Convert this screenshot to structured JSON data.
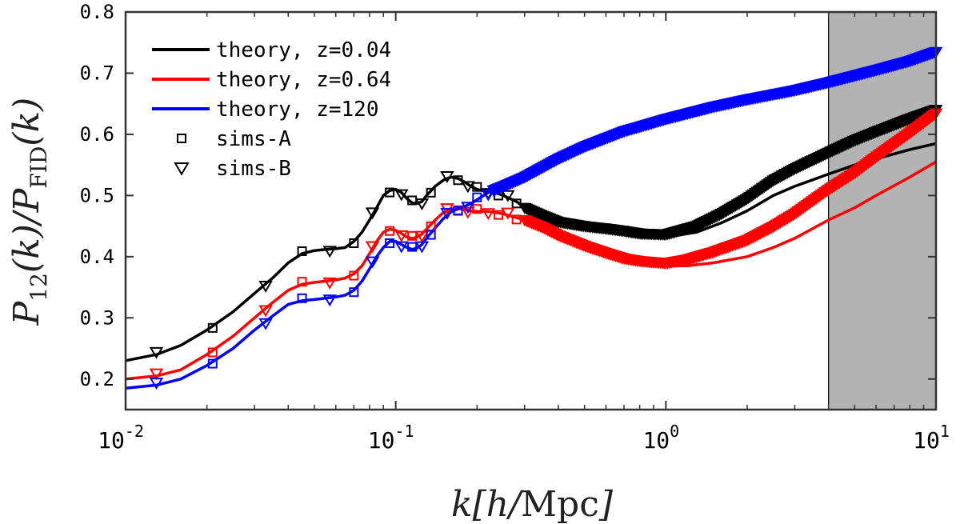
{
  "chart_data": {
    "type": "line",
    "xscale": "log",
    "xlim": [
      0.01,
      10
    ],
    "ylim": [
      0.15,
      0.8
    ],
    "yticks": [
      0.2,
      0.3,
      0.4,
      0.5,
      0.6,
      0.7,
      0.8
    ],
    "ytick_labels": [
      "0.2",
      "0.3",
      "0.4",
      "0.5",
      "0.6",
      "0.7",
      "0.8"
    ],
    "xticks": [
      0.01,
      0.1,
      1,
      10
    ],
    "xtick_labels": [
      {
        "base": "10",
        "exp": "-2"
      },
      {
        "base": "10",
        "exp": "-1"
      },
      {
        "base": "10",
        "exp": "0"
      },
      {
        "base": "10",
        "exp": "1"
      }
    ],
    "xlabel": "k[h/Mpc]",
    "ylabel": "P12(k)/PFID(k)",
    "shaded_region": {
      "xmin": 4,
      "xmax": 10,
      "color": "#b3b3b3"
    },
    "legend_position": "top-left",
    "series": [
      {
        "name": "theory, z=0.04",
        "color": "#000000",
        "x": [
          0.01,
          0.013,
          0.016,
          0.02,
          0.025,
          0.03,
          0.035,
          0.04,
          0.045,
          0.05,
          0.055,
          0.06,
          0.065,
          0.07,
          0.075,
          0.08,
          0.085,
          0.09,
          0.095,
          0.1,
          0.105,
          0.11,
          0.115,
          0.12,
          0.125,
          0.13,
          0.14,
          0.15,
          0.16,
          0.17,
          0.18,
          0.19,
          0.2,
          0.21,
          0.22,
          0.23,
          0.25,
          0.28,
          0.3,
          0.35,
          0.4,
          0.5,
          0.6,
          0.7,
          0.8,
          1.0,
          1.3,
          1.6,
          2.0,
          2.5,
          3.0,
          4.0,
          5.0,
          6.0,
          8.0,
          10.0
        ],
        "y": [
          0.23,
          0.24,
          0.255,
          0.28,
          0.31,
          0.34,
          0.365,
          0.39,
          0.405,
          0.41,
          0.412,
          0.413,
          0.415,
          0.425,
          0.44,
          0.46,
          0.48,
          0.5,
          0.508,
          0.51,
          0.505,
          0.495,
          0.488,
          0.487,
          0.49,
          0.5,
          0.515,
          0.525,
          0.53,
          0.528,
          0.522,
          0.515,
          0.51,
          0.508,
          0.507,
          0.506,
          0.5,
          0.49,
          0.48,
          0.467,
          0.457,
          0.45,
          0.445,
          0.44,
          0.435,
          0.432,
          0.44,
          0.455,
          0.475,
          0.5,
          0.515,
          0.535,
          0.55,
          0.56,
          0.575,
          0.585
        ]
      },
      {
        "name": "theory, z=0.64",
        "color": "#ff0000",
        "x": [
          0.01,
          0.013,
          0.016,
          0.02,
          0.025,
          0.03,
          0.035,
          0.04,
          0.045,
          0.05,
          0.055,
          0.06,
          0.065,
          0.07,
          0.075,
          0.08,
          0.085,
          0.09,
          0.095,
          0.1,
          0.105,
          0.11,
          0.115,
          0.12,
          0.125,
          0.13,
          0.14,
          0.15,
          0.16,
          0.17,
          0.18,
          0.19,
          0.2,
          0.22,
          0.25,
          0.3,
          0.35,
          0.4,
          0.5,
          0.6,
          0.7,
          0.8,
          1.0,
          1.2,
          1.5,
          2.0,
          2.5,
          3.0,
          4.0,
          5.0,
          6.0,
          8.0,
          10.0
        ],
        "y": [
          0.2,
          0.205,
          0.215,
          0.24,
          0.27,
          0.3,
          0.325,
          0.345,
          0.355,
          0.358,
          0.36,
          0.362,
          0.365,
          0.372,
          0.385,
          0.405,
          0.425,
          0.44,
          0.445,
          0.443,
          0.438,
          0.432,
          0.43,
          0.432,
          0.437,
          0.445,
          0.46,
          0.472,
          0.478,
          0.479,
          0.477,
          0.475,
          0.474,
          0.474,
          0.47,
          0.46,
          0.448,
          0.435,
          0.418,
          0.405,
          0.395,
          0.39,
          0.385,
          0.385,
          0.39,
          0.4,
          0.415,
          0.43,
          0.46,
          0.48,
          0.5,
          0.53,
          0.555
        ]
      },
      {
        "name": "theory, z=120",
        "color": "#0000ff",
        "x": [
          0.01,
          0.013,
          0.016,
          0.02,
          0.025,
          0.03,
          0.035,
          0.04,
          0.045,
          0.05,
          0.055,
          0.06,
          0.065,
          0.07,
          0.075,
          0.08,
          0.085,
          0.09,
          0.095,
          0.1,
          0.105,
          0.11,
          0.115,
          0.12,
          0.125,
          0.13,
          0.14,
          0.15,
          0.16,
          0.17,
          0.18,
          0.19,
          0.2,
          0.22,
          0.25,
          0.3,
          0.4,
          0.5,
          0.7,
          1.0,
          1.5,
          2.0,
          3.0,
          4.0,
          6.0,
          8.0,
          10.0
        ],
        "y": [
          0.185,
          0.19,
          0.2,
          0.222,
          0.25,
          0.28,
          0.303,
          0.322,
          0.328,
          0.33,
          0.332,
          0.334,
          0.337,
          0.345,
          0.36,
          0.38,
          0.4,
          0.415,
          0.425,
          0.425,
          0.42,
          0.415,
          0.412,
          0.414,
          0.42,
          0.43,
          0.447,
          0.462,
          0.473,
          0.478,
          0.482,
          0.487,
          0.493,
          0.505,
          0.515,
          0.53,
          0.56,
          0.58,
          0.605,
          0.625,
          0.645,
          0.657,
          0.672,
          0.685,
          0.705,
          0.72,
          0.735
        ]
      }
    ],
    "markers": {
      "sims_A_label": "sims-A",
      "sims_B_label": "sims-B"
    }
  }
}
